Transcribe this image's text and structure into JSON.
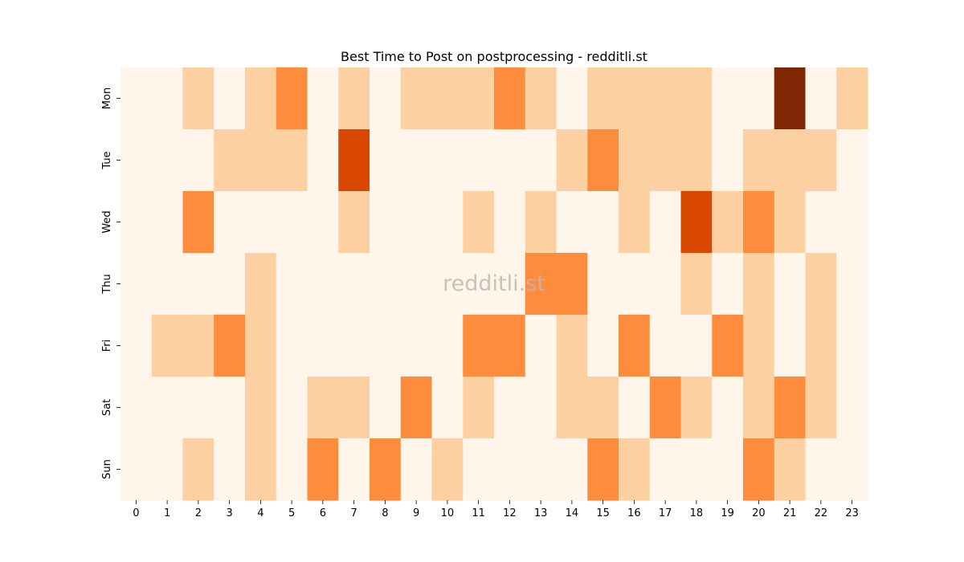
{
  "chart_data": {
    "type": "heatmap",
    "title": "Best Time to Post on postprocessing - redditli.st",
    "watermark": "redditli.st",
    "x_labels": [
      "0",
      "1",
      "2",
      "3",
      "4",
      "5",
      "6",
      "7",
      "8",
      "9",
      "10",
      "11",
      "12",
      "13",
      "14",
      "15",
      "16",
      "17",
      "18",
      "19",
      "20",
      "21",
      "22",
      "23"
    ],
    "y_labels": [
      "Mon",
      "Tue",
      "Wed",
      "Thu",
      "Fri",
      "Sat",
      "Sun"
    ],
    "values": [
      [
        0,
        0,
        1,
        0,
        1,
        2,
        0,
        1,
        0,
        1,
        1,
        1,
        2,
        1,
        0,
        1,
        1,
        1,
        1,
        0,
        0,
        4,
        0,
        1
      ],
      [
        0,
        0,
        0,
        1,
        1,
        1,
        0,
        3,
        0,
        0,
        0,
        0,
        0,
        0,
        1,
        2,
        1,
        1,
        1,
        0,
        1,
        1,
        1,
        0
      ],
      [
        0,
        0,
        2,
        0,
        0,
        0,
        0,
        1,
        0,
        0,
        0,
        1,
        0,
        1,
        0,
        0,
        1,
        0,
        3,
        1,
        2,
        1,
        0,
        0
      ],
      [
        0,
        0,
        0,
        0,
        1,
        0,
        0,
        0,
        0,
        0,
        0,
        0,
        0,
        2,
        2,
        0,
        0,
        0,
        1,
        0,
        1,
        0,
        1,
        0
      ],
      [
        0,
        1,
        1,
        2,
        1,
        0,
        0,
        0,
        0,
        0,
        0,
        2,
        2,
        0,
        1,
        0,
        2,
        0,
        0,
        2,
        1,
        0,
        1,
        0
      ],
      [
        0,
        0,
        0,
        0,
        1,
        0,
        1,
        1,
        0,
        2,
        0,
        1,
        0,
        0,
        1,
        1,
        0,
        2,
        1,
        0,
        1,
        2,
        1,
        0
      ],
      [
        0,
        0,
        1,
        0,
        1,
        0,
        2,
        0,
        2,
        0,
        1,
        0,
        0,
        0,
        0,
        2,
        1,
        0,
        0,
        0,
        2,
        1,
        0,
        0
      ]
    ],
    "vmin": 0,
    "vmax": 4,
    "colorscale": [
      "#fff5eb",
      "#fdd0a2",
      "#fd8d3c",
      "#d94801",
      "#7f2704"
    ],
    "grid": false,
    "legend": "none"
  }
}
